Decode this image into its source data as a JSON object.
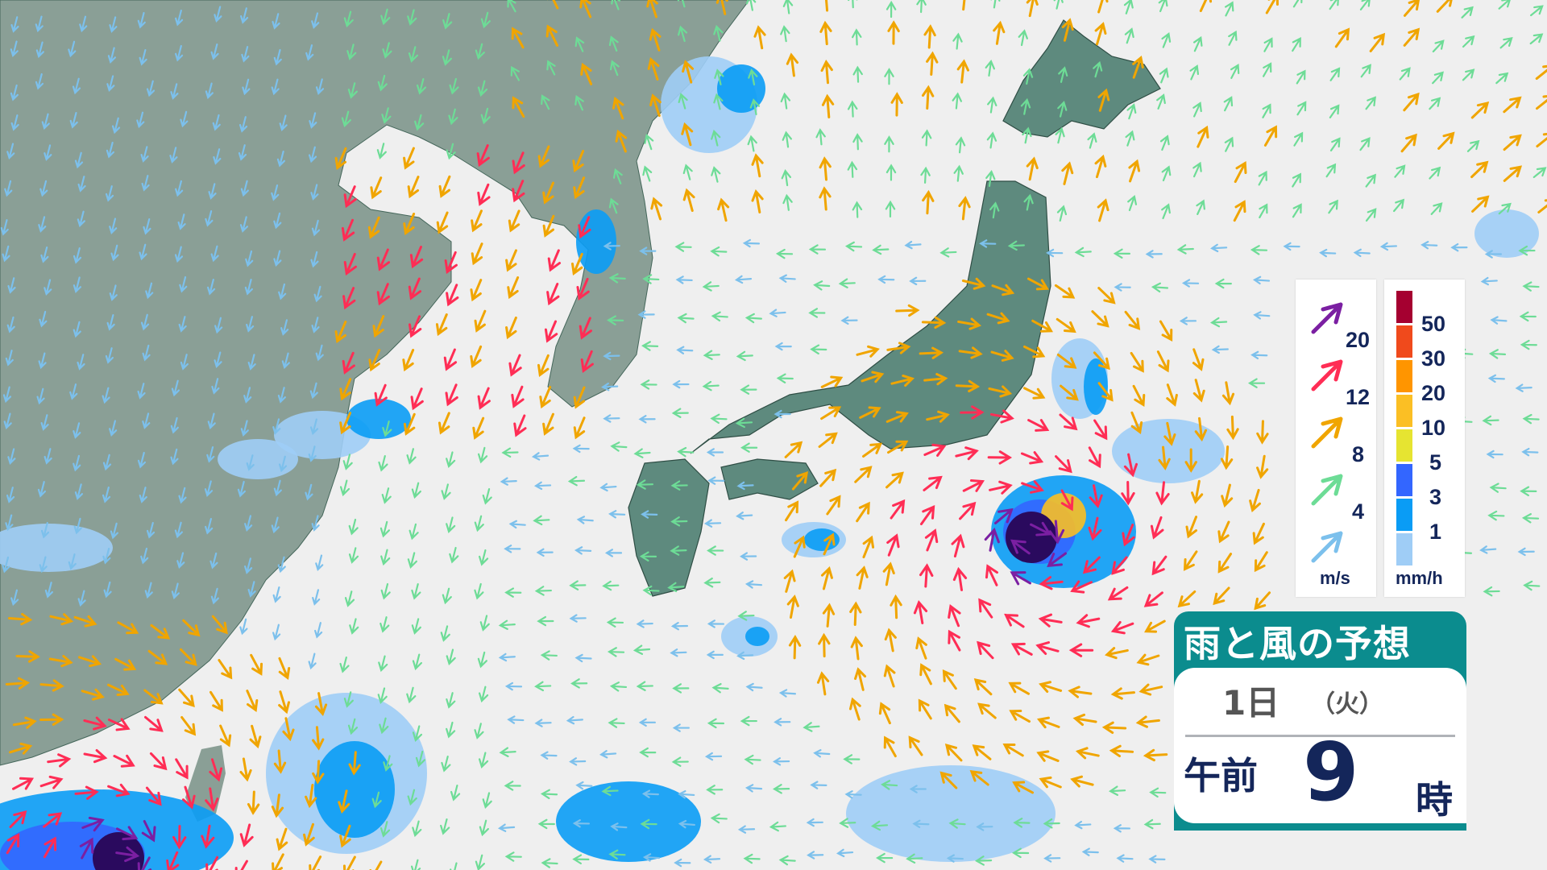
{
  "colors": {
    "sea": "#efefef",
    "mainland": "#8a9f96",
    "japan": "#5e8a7e",
    "title_bg": "#0b8c8e"
  },
  "title": {
    "heading": "雨と風の予想",
    "day": "1日",
    "weekday": "（火）",
    "ampm": "午前",
    "hour": "9",
    "hour_unit": "時"
  },
  "wind_legend": {
    "unit": "m/s",
    "entries": [
      {
        "label": "20",
        "color": "#7b1fa2"
      },
      {
        "label": "12",
        "color": "#ff2d55"
      },
      {
        "label": "8",
        "color": "#f0a500"
      },
      {
        "label": "4",
        "color": "#6ddc96"
      },
      {
        "label": "",
        "color": "#7cc0ec"
      }
    ]
  },
  "rain_legend": {
    "unit": "mm/h",
    "entries": [
      {
        "label": "50",
        "color": "#a50030"
      },
      {
        "label": "30",
        "color": "#f04a1c"
      },
      {
        "label": "20",
        "color": "#ff9500"
      },
      {
        "label": "10",
        "color": "#fbbf24"
      },
      {
        "label": "5",
        "color": "#e6e431"
      },
      {
        "label": "3",
        "color": "#3366ff"
      },
      {
        "label": "1",
        "color": "#0a9cf5"
      },
      {
        "label": "",
        "color": "#9fcdf6"
      }
    ]
  },
  "typhoon_marks": [
    "typhoon-east-of-japan",
    "typhoon-near-taiwan"
  ]
}
